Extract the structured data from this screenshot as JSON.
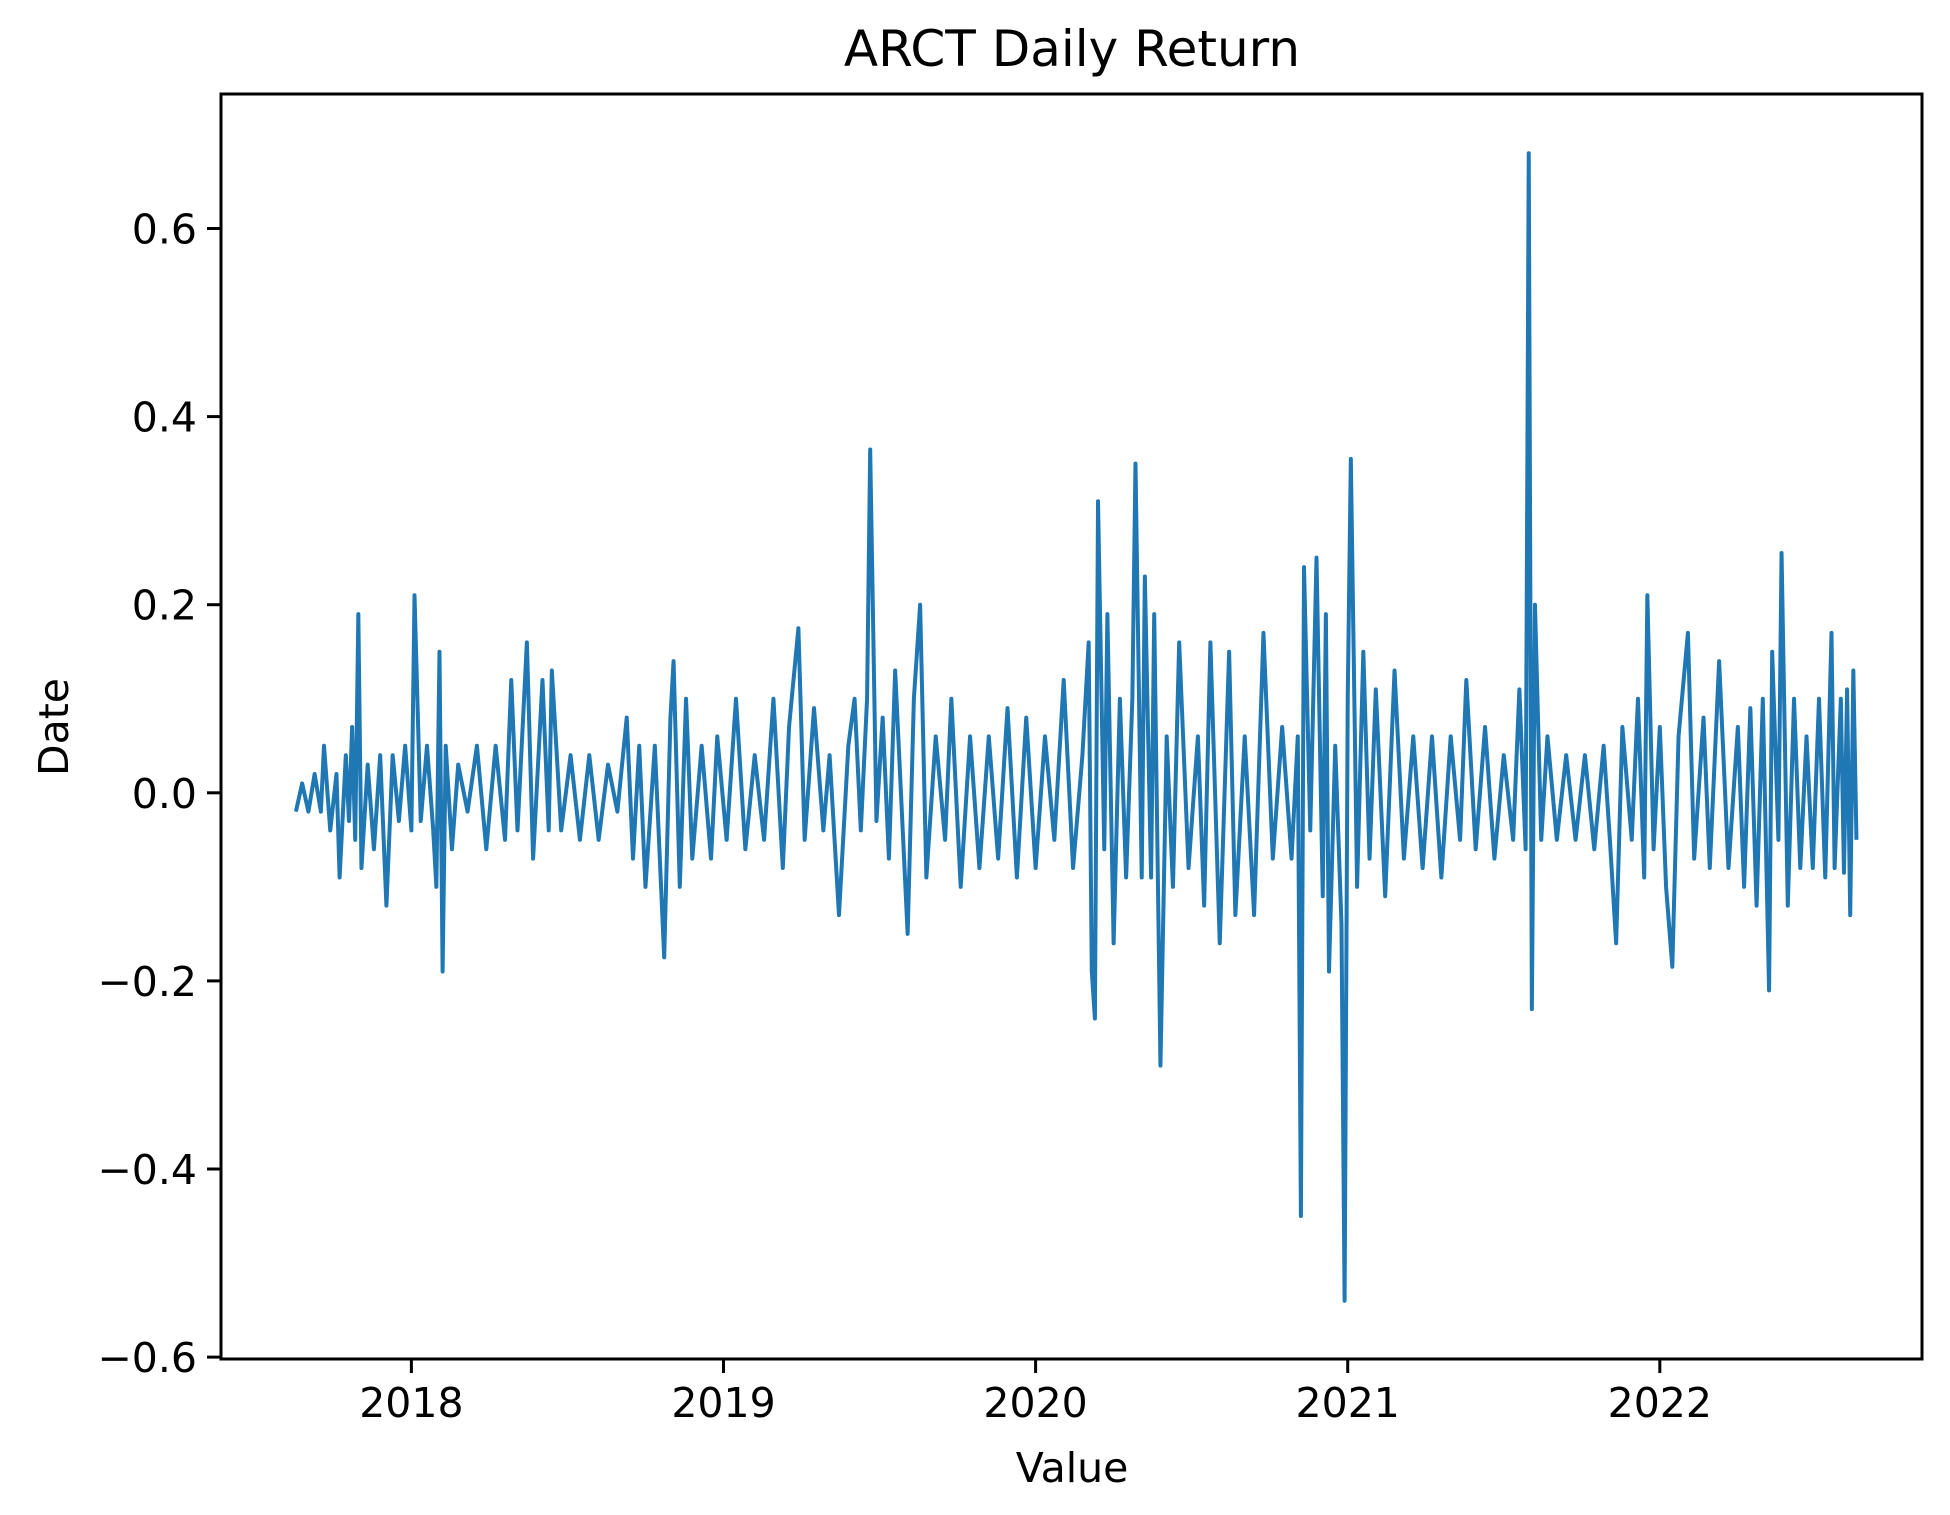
{
  "chart_data": {
    "type": "line",
    "title": "ARCT Daily Return",
    "x_label": "Value",
    "y_label": "Date",
    "xlim": [
      2017.39,
      2022.84
    ],
    "xticks": [
      2018,
      2019,
      2020,
      2021,
      2022
    ],
    "ylim": [
      -0.602,
      0.743
    ],
    "yticks": [
      {
        "value": -0.6,
        "label": "−0.6"
      },
      {
        "value": -0.4,
        "label": "−0.4"
      },
      {
        "value": -0.2,
        "label": "−0.2"
      },
      {
        "value": 0,
        "label": "0.0"
      },
      0.2,
      0.4,
      0.6
    ],
    "grid": false,
    "series": [
      {
        "name": "ARCT",
        "color": "#1f77b4",
        "x": [
          2017.63,
          2017.65,
          2017.67,
          2017.69,
          2017.71,
          2017.72,
          2017.74,
          2017.76,
          2017.77,
          2017.79,
          2017.8,
          2017.81,
          2017.82,
          2017.83,
          2017.84,
          2017.86,
          2017.88,
          2017.9,
          2017.92,
          2017.94,
          2017.96,
          2017.98,
          2018.0,
          2018.01,
          2018.03,
          2018.05,
          2018.07,
          2018.08,
          2018.09,
          2018.1,
          2018.11,
          2018.13,
          2018.15,
          2018.18,
          2018.21,
          2018.24,
          2018.27,
          2018.3,
          2018.32,
          2018.34,
          2018.37,
          2018.39,
          2018.42,
          2018.44,
          2018.45,
          2018.48,
          2018.51,
          2018.54,
          2018.57,
          2018.6,
          2018.63,
          2018.66,
          2018.69,
          2018.71,
          2018.73,
          2018.75,
          2018.78,
          2018.81,
          2018.83,
          2018.84,
          2018.86,
          2018.88,
          2018.9,
          2018.93,
          2018.96,
          2018.98,
          2019.01,
          2019.04,
          2019.07,
          2019.1,
          2019.13,
          2019.16,
          2019.19,
          2019.21,
          2019.24,
          2019.26,
          2019.29,
          2019.32,
          2019.34,
          2019.37,
          2019.4,
          2019.42,
          2019.44,
          2019.46,
          2019.47,
          2019.49,
          2019.51,
          2019.53,
          2019.55,
          2019.59,
          2019.61,
          2019.63,
          2019.65,
          2019.68,
          2019.71,
          2019.73,
          2019.76,
          2019.79,
          2019.82,
          2019.85,
          2019.88,
          2019.91,
          2019.94,
          2019.97,
          2020.0,
          2020.03,
          2020.06,
          2020.09,
          2020.12,
          2020.15,
          2020.17,
          2020.18,
          2020.19,
          2020.2,
          2020.22,
          2020.23,
          2020.25,
          2020.27,
          2020.29,
          2020.31,
          2020.32,
          2020.34,
          2020.35,
          2020.37,
          2020.38,
          2020.4,
          2020.42,
          2020.44,
          2020.46,
          2020.49,
          2020.52,
          2020.54,
          2020.56,
          2020.59,
          2020.62,
          2020.64,
          2020.67,
          2020.7,
          2020.73,
          2020.76,
          2020.79,
          2020.82,
          2020.84,
          2020.85,
          2020.86,
          2020.88,
          2020.9,
          2020.92,
          2020.93,
          2020.94,
          2020.96,
          2020.98,
          2020.99,
          2021.0,
          2021.01,
          2021.03,
          2021.05,
          2021.07,
          2021.09,
          2021.12,
          2021.15,
          2021.18,
          2021.21,
          2021.24,
          2021.27,
          2021.3,
          2021.33,
          2021.36,
          2021.38,
          2021.41,
          2021.44,
          2021.47,
          2021.5,
          2021.53,
          2021.55,
          2021.57,
          2021.58,
          2021.59,
          2021.6,
          2021.62,
          2021.64,
          2021.67,
          2021.7,
          2021.73,
          2021.76,
          2021.79,
          2021.82,
          2021.84,
          2021.86,
          2021.88,
          2021.91,
          2021.93,
          2021.95,
          2021.96,
          2021.98,
          2022.0,
          2022.02,
          2022.04,
          2022.06,
          2022.09,
          2022.11,
          2022.14,
          2022.16,
          2022.19,
          2022.22,
          2022.25,
          2022.27,
          2022.29,
          2022.31,
          2022.33,
          2022.35,
          2022.36,
          2022.38,
          2022.39,
          2022.41,
          2022.43,
          2022.45,
          2022.47,
          2022.49,
          2022.51,
          2022.53,
          2022.55,
          2022.56,
          2022.58,
          2022.59,
          2022.6,
          2022.61,
          2022.62,
          2022.63
        ],
        "values": [
          -0.02,
          0.01,
          -0.02,
          0.02,
          -0.02,
          0.05,
          -0.04,
          0.02,
          -0.09,
          0.04,
          -0.03,
          0.07,
          -0.05,
          0.19,
          -0.08,
          0.03,
          -0.06,
          0.04,
          -0.12,
          0.04,
          -0.03,
          0.05,
          -0.04,
          0.21,
          -0.03,
          0.05,
          -0.04,
          -0.1,
          0.15,
          -0.19,
          0.05,
          -0.06,
          0.03,
          -0.02,
          0.05,
          -0.06,
          0.05,
          -0.05,
          0.12,
          -0.04,
          0.16,
          -0.07,
          0.12,
          -0.04,
          0.13,
          -0.04,
          0.04,
          -0.05,
          0.04,
          -0.05,
          0.03,
          -0.02,
          0.08,
          -0.07,
          0.05,
          -0.1,
          0.05,
          -0.175,
          0.08,
          0.14,
          -0.1,
          0.1,
          -0.07,
          0.05,
          -0.07,
          0.06,
          -0.05,
          0.1,
          -0.06,
          0.04,
          -0.05,
          0.1,
          -0.08,
          0.07,
          0.175,
          -0.05,
          0.09,
          -0.04,
          0.04,
          -0.13,
          0.05,
          0.1,
          -0.04,
          0.1,
          0.365,
          -0.03,
          0.08,
          -0.07,
          0.13,
          -0.15,
          0.1,
          0.2,
          -0.09,
          0.06,
          -0.05,
          0.1,
          -0.1,
          0.06,
          -0.08,
          0.06,
          -0.07,
          0.09,
          -0.09,
          0.08,
          -0.08,
          0.06,
          -0.05,
          0.12,
          -0.08,
          0.04,
          0.16,
          -0.19,
          -0.24,
          0.31,
          -0.06,
          0.19,
          -0.16,
          0.1,
          -0.09,
          0.1,
          0.35,
          -0.09,
          0.23,
          -0.09,
          0.19,
          -0.29,
          0.06,
          -0.1,
          0.16,
          -0.08,
          0.06,
          -0.12,
          0.16,
          -0.16,
          0.15,
          -0.13,
          0.06,
          -0.13,
          0.17,
          -0.07,
          0.07,
          -0.07,
          0.06,
          -0.45,
          0.24,
          -0.04,
          0.25,
          -0.11,
          0.19,
          -0.19,
          0.05,
          -0.14,
          -0.54,
          0.1,
          0.355,
          -0.1,
          0.15,
          -0.07,
          0.11,
          -0.11,
          0.13,
          -0.07,
          0.06,
          -0.08,
          0.06,
          -0.09,
          0.06,
          -0.05,
          0.12,
          -0.06,
          0.07,
          -0.07,
          0.04,
          -0.05,
          0.11,
          -0.06,
          0.68,
          -0.23,
          0.2,
          -0.05,
          0.06,
          -0.05,
          0.04,
          -0.05,
          0.04,
          -0.06,
          0.05,
          -0.05,
          -0.16,
          0.07,
          -0.05,
          0.1,
          -0.09,
          0.21,
          -0.06,
          0.07,
          -0.1,
          -0.185,
          0.06,
          0.17,
          -0.07,
          0.08,
          -0.08,
          0.14,
          -0.08,
          0.07,
          -0.1,
          0.09,
          -0.12,
          0.1,
          -0.21,
          0.15,
          -0.05,
          0.255,
          -0.12,
          0.1,
          -0.08,
          0.06,
          -0.08,
          0.1,
          -0.09,
          0.17,
          -0.08,
          0.1,
          -0.085,
          0.11,
          -0.13,
          0.13,
          -0.05
        ]
      }
    ]
  }
}
